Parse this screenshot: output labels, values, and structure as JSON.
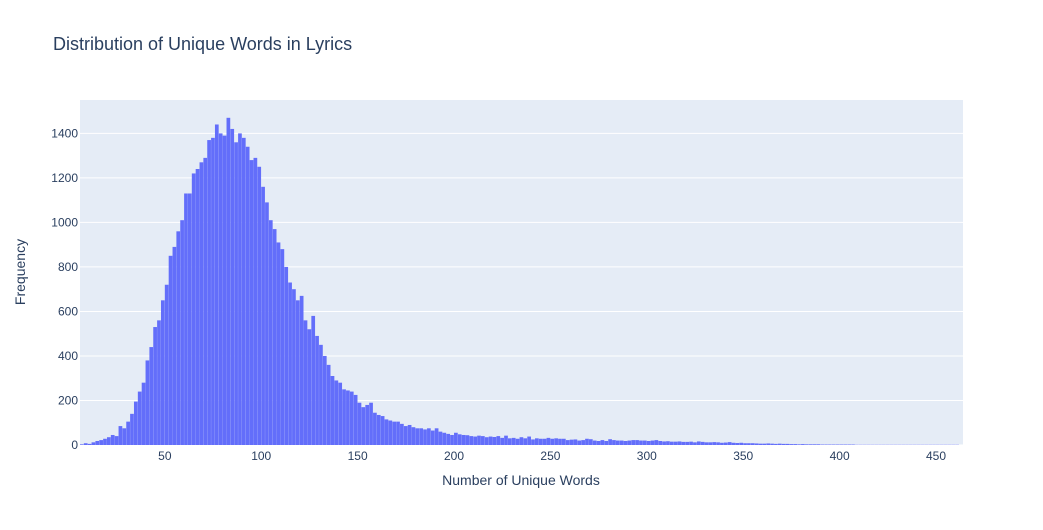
{
  "chart_data": {
    "type": "bar",
    "title": "Distribution of Unique Words in Lyrics",
    "xlabel": "Number of Unique Words",
    "ylabel": "Frequency",
    "xlim": [
      6,
      464
    ],
    "ylim": [
      0,
      1550
    ],
    "x_ticks": [
      50,
      100,
      150,
      200,
      250,
      300,
      350,
      400,
      450
    ],
    "y_ticks": [
      0,
      200,
      400,
      600,
      800,
      1000,
      1200,
      1400
    ],
    "bin_width": 2,
    "bin_start": 6,
    "values": [
      3,
      8,
      5,
      12,
      18,
      22,
      28,
      35,
      45,
      40,
      85,
      75,
      105,
      140,
      195,
      240,
      280,
      380,
      440,
      530,
      560,
      650,
      720,
      850,
      890,
      960,
      1010,
      1130,
      1130,
      1220,
      1240,
      1270,
      1290,
      1370,
      1380,
      1440,
      1400,
      1390,
      1470,
      1420,
      1360,
      1400,
      1380,
      1340,
      1280,
      1290,
      1250,
      1160,
      1090,
      1010,
      970,
      910,
      880,
      800,
      730,
      700,
      650,
      670,
      560,
      520,
      580,
      490,
      450,
      400,
      360,
      310,
      290,
      280,
      250,
      245,
      240,
      225,
      190,
      170,
      180,
      190,
      145,
      135,
      130,
      115,
      110,
      105,
      105,
      95,
      85,
      90,
      80,
      75,
      75,
      70,
      75,
      65,
      75,
      60,
      55,
      50,
      45,
      55,
      48,
      45,
      44,
      40,
      38,
      42,
      40,
      35,
      38,
      36,
      40,
      32,
      42,
      30,
      32,
      28,
      35,
      30,
      38,
      25,
      30,
      28,
      28,
      32,
      28,
      30,
      28,
      28,
      22,
      24,
      25,
      20,
      22,
      28,
      26,
      20,
      18,
      22,
      18,
      26,
      22,
      20,
      20,
      18,
      20,
      22,
      22,
      20,
      20,
      18,
      20,
      22,
      18,
      16,
      17,
      15,
      15,
      16,
      14,
      14,
      15,
      12,
      16,
      14,
      12,
      12,
      13,
      12,
      10,
      11,
      13,
      10,
      9,
      10,
      8,
      8,
      8,
      7,
      6,
      6,
      7,
      6,
      5,
      6,
      5,
      5,
      4,
      4,
      3,
      4,
      3,
      3,
      3,
      3,
      2,
      2,
      2,
      2,
      2,
      2,
      2,
      2,
      2,
      1,
      1,
      1,
      1,
      1,
      1,
      1,
      1,
      1,
      1,
      1,
      1,
      1,
      1,
      1,
      1,
      1,
      1,
      1,
      1,
      1,
      1,
      1,
      1,
      1,
      1,
      1
    ],
    "bar_color": "#636efa",
    "plot_bg": "#e5ecf6",
    "grid": true,
    "legend": "none"
  }
}
